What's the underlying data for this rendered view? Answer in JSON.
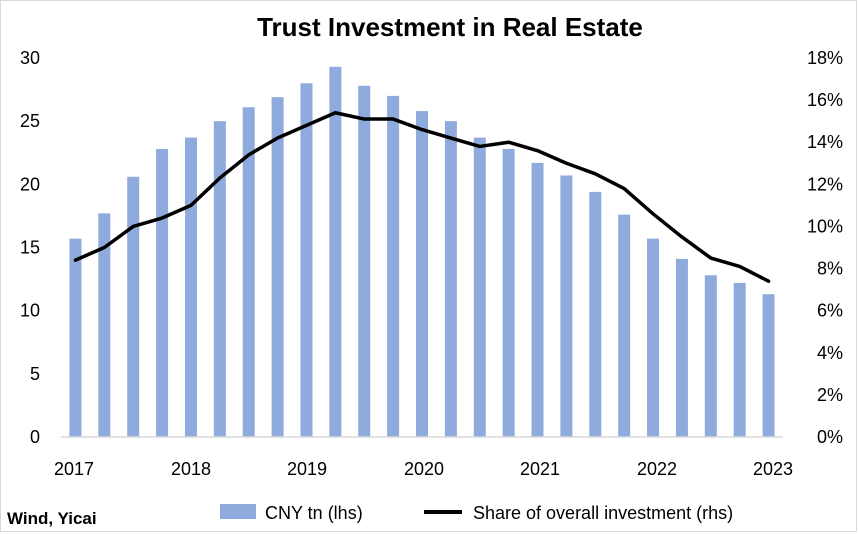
{
  "chart_data": {
    "type": "bar",
    "title": "Trust Investment in Real Estate",
    "source": "Wind, Yicai",
    "x_tick_labels": [
      "2017",
      "2018",
      "2019",
      "2020",
      "2021",
      "2022",
      "2023"
    ],
    "y_left": {
      "min": 0,
      "max": 30,
      "step": 5,
      "tick_labels": [
        "0",
        "5",
        "10",
        "15",
        "20",
        "25",
        "30"
      ]
    },
    "y_right": {
      "min": 0,
      "max": 18,
      "step": 2,
      "tick_labels": [
        "0%",
        "2%",
        "4%",
        "6%",
        "8%",
        "10%",
        "12%",
        "14%",
        "16%",
        "18%"
      ]
    },
    "grid": false,
    "legend_position": "bottom",
    "series": [
      {
        "name": "CNY tn (lhs)",
        "kind": "bar",
        "axis": "left",
        "color": "#8faadc",
        "values": [
          15.7,
          17.7,
          20.6,
          22.8,
          23.7,
          25.0,
          26.1,
          26.9,
          28.0,
          29.3,
          27.8,
          27.0,
          25.8,
          25.0,
          23.7,
          22.8,
          21.7,
          20.7,
          19.4,
          17.6,
          15.7,
          14.1,
          12.8,
          12.2,
          11.3
        ]
      },
      {
        "name": "Share of overall investment (rhs)",
        "kind": "line",
        "axis": "right",
        "color": "#000000",
        "values": [
          8.4,
          9.0,
          10.0,
          10.4,
          11.0,
          12.3,
          13.4,
          14.2,
          14.8,
          15.4,
          15.1,
          15.1,
          14.6,
          14.2,
          13.8,
          14.0,
          13.6,
          13.0,
          12.5,
          11.8,
          10.6,
          9.5,
          8.5,
          8.1,
          7.4
        ]
      }
    ]
  }
}
